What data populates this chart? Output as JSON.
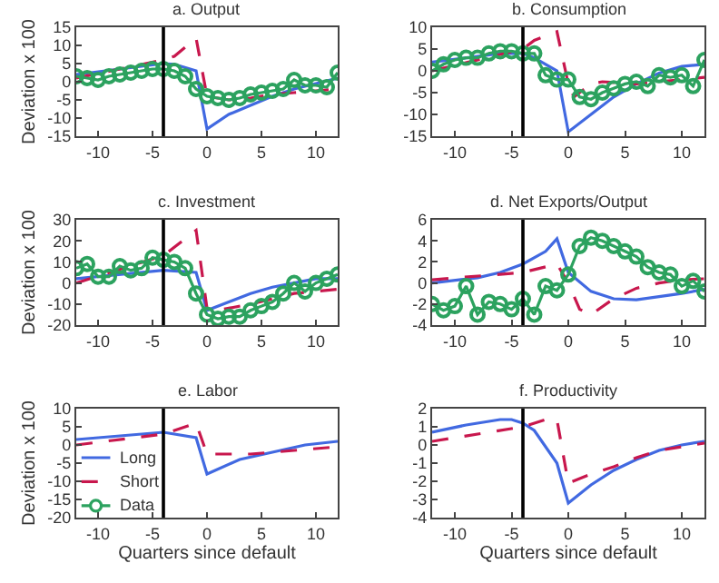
{
  "chart_data": [
    {
      "type": "line",
      "title": "a. Output",
      "ylabel": "Deviation x 100",
      "xlim": [
        -12,
        12
      ],
      "xticks": [
        -10,
        -5,
        0,
        5,
        10
      ],
      "ylim": [
        -15,
        15
      ],
      "yticks": [
        -15,
        -10,
        -5,
        0,
        5,
        10,
        15
      ],
      "ref_lines": [
        {
          "axis": "x",
          "value": -4,
          "color": "#000000"
        }
      ],
      "series": [
        {
          "color": "#4169e1",
          "line_style": "solid",
          "marker": "none",
          "x": [
            -12,
            -4,
            -3,
            -1,
            0,
            2,
            4,
            6,
            8,
            10,
            12
          ],
          "values": [
            2,
            5,
            4.8,
            3,
            -13,
            -9,
            -6.5,
            -4,
            -2,
            -0.5,
            1
          ]
        },
        {
          "color": "#c8174d",
          "line_style": "dashed",
          "marker": "none",
          "x": [
            -12,
            -4,
            -3,
            -1,
            0,
            2,
            4,
            6,
            8,
            10,
            12
          ],
          "values": [
            1,
            6,
            7,
            12,
            -4,
            -5,
            -4.5,
            -3.5,
            -3,
            -2.5,
            -2
          ]
        },
        {
          "color": "#2ca25f",
          "line_style": "solid",
          "marker": "circle",
          "x": [
            -12,
            -11,
            -10,
            -9,
            -8,
            -7,
            -6,
            -5,
            -4,
            -3,
            -2,
            -1,
            0,
            1,
            2,
            3,
            4,
            5,
            6,
            7,
            8,
            9,
            10,
            11,
            12
          ],
          "values": [
            1.5,
            1,
            0.5,
            1.5,
            2,
            2.5,
            3,
            3.5,
            3.5,
            3,
            1.5,
            -2,
            -4,
            -4.5,
            -5,
            -4.5,
            -3.5,
            -3,
            -2.5,
            -2,
            0.5,
            -1,
            -1,
            -1.5,
            2.5
          ]
        }
      ]
    },
    {
      "type": "line",
      "title": "b. Consumption",
      "xlim": [
        -12,
        12
      ],
      "xticks": [
        -10,
        -5,
        0,
        5,
        10
      ],
      "ylim": [
        -15,
        10
      ],
      "yticks": [
        -15,
        -10,
        -5,
        0,
        5,
        10
      ],
      "ref_lines": [
        {
          "axis": "x",
          "value": -4,
          "color": "#000000"
        }
      ],
      "series": [
        {
          "color": "#4169e1",
          "line_style": "solid",
          "marker": "none",
          "x": [
            -12,
            -6,
            -4,
            -3,
            -1,
            0,
            2,
            4,
            6,
            8,
            10,
            12
          ],
          "values": [
            2,
            4,
            4,
            3,
            0,
            -14,
            -10,
            -6,
            -3,
            -0.5,
            1,
            1.5
          ]
        },
        {
          "color": "#c8174d",
          "line_style": "dashed",
          "marker": "none",
          "x": [
            -12,
            -4,
            -3,
            -1,
            0,
            0.5,
            2,
            3,
            6,
            8,
            12
          ],
          "values": [
            0,
            5,
            7,
            9,
            -3,
            -6,
            -3,
            -2.5,
            -3,
            -2.5,
            -1.5
          ]
        },
        {
          "color": "#2ca25f",
          "line_style": "solid",
          "marker": "circle",
          "x": [
            -12,
            -11,
            -10,
            -9,
            -8,
            -7,
            -6,
            -5,
            -4,
            -3,
            -2,
            -1,
            0,
            1,
            2,
            3,
            4,
            5,
            6,
            7,
            8,
            9,
            10,
            11,
            12
          ],
          "values": [
            0,
            1.5,
            2.5,
            3,
            3,
            4,
            4.5,
            4.5,
            4,
            4,
            -1,
            -2,
            -2,
            -6,
            -6.5,
            -5,
            -4,
            -3,
            -2.5,
            -3.5,
            -1,
            -1.5,
            -1,
            -3.5,
            2.5
          ]
        }
      ]
    },
    {
      "type": "line",
      "title": "c. Investment",
      "ylabel": "Deviation x 100",
      "xlim": [
        -12,
        12
      ],
      "xticks": [
        -10,
        -5,
        0,
        5,
        10
      ],
      "ylim": [
        -20,
        30
      ],
      "yticks": [
        -20,
        -10,
        0,
        10,
        20,
        30
      ],
      "ref_lines": [
        {
          "axis": "x",
          "value": -4,
          "color": "#000000"
        }
      ],
      "series": [
        {
          "color": "#4169e1",
          "line_style": "solid",
          "marker": "none",
          "x": [
            -12,
            -4,
            -1,
            0,
            2,
            4,
            6,
            8,
            10,
            12
          ],
          "values": [
            2,
            6,
            5,
            -13,
            -9,
            -5,
            -2,
            0,
            2,
            2
          ]
        },
        {
          "color": "#c8174d",
          "line_style": "dashed",
          "marker": "none",
          "x": [
            -12,
            -4,
            -1,
            0,
            1,
            4,
            8,
            12
          ],
          "values": [
            0,
            13,
            25,
            -12,
            -13,
            -10,
            -5,
            -3
          ]
        },
        {
          "color": "#2ca25f",
          "line_style": "solid",
          "marker": "circle",
          "x": [
            -12,
            -11,
            -10,
            -9,
            -8,
            -7,
            -6,
            -5,
            -4,
            -3,
            -2,
            -1,
            0,
            1,
            2,
            3,
            4,
            5,
            6,
            7,
            8,
            9,
            10,
            11,
            12
          ],
          "values": [
            7,
            9,
            3,
            3,
            8,
            6,
            7,
            12,
            11,
            10,
            7,
            -5,
            -15,
            -17,
            -16,
            -16,
            -13,
            -11,
            -9,
            -5,
            0,
            -4,
            0,
            2,
            4
          ]
        }
      ]
    },
    {
      "type": "line",
      "title": "d. Net Exports/Output",
      "xlim": [
        -12,
        12
      ],
      "xticks": [
        -10,
        -5,
        0,
        5,
        10
      ],
      "ylim": [
        -4,
        6
      ],
      "yticks": [
        -4,
        -2,
        0,
        2,
        4,
        6
      ],
      "ref_lines": [
        {
          "axis": "x",
          "value": -4,
          "color": "#000000"
        }
      ],
      "series": [
        {
          "color": "#4169e1",
          "line_style": "solid",
          "marker": "none",
          "x": [
            -12,
            -8,
            -6,
            -4,
            -2,
            -1,
            0,
            2,
            4,
            6,
            8,
            10,
            12
          ],
          "values": [
            0,
            0.5,
            1,
            1.8,
            3,
            4.2,
            1,
            -0.8,
            -1.5,
            -1.6,
            -1.3,
            -1,
            -0.6
          ]
        },
        {
          "color": "#c8174d",
          "line_style": "dashed",
          "marker": "none",
          "x": [
            -12,
            -4,
            -1,
            0,
            1,
            2,
            4,
            6,
            8,
            10,
            12
          ],
          "values": [
            0.3,
            1,
            1.8,
            0,
            -2.5,
            -3,
            -1.5,
            -0.5,
            0,
            0.3,
            0.4
          ]
        },
        {
          "color": "#2ca25f",
          "line_style": "solid",
          "marker": "circle",
          "x": [
            -12,
            -11,
            -10,
            -9,
            -8,
            -7,
            -6,
            -5,
            -4,
            -3,
            -2,
            -1,
            0,
            1,
            2,
            3,
            4,
            5,
            6,
            7,
            8,
            9,
            10,
            11,
            12
          ],
          "values": [
            -2,
            -2.6,
            -2.2,
            -0.3,
            -3,
            -1.8,
            -2,
            -2.5,
            -1.5,
            -3,
            -0.3,
            -0.7,
            0.8,
            3.5,
            4.3,
            4,
            3.5,
            3,
            2.5,
            1.5,
            1,
            0.8,
            -0.3,
            0.2,
            -0.8
          ]
        }
      ]
    },
    {
      "type": "line",
      "title": "e. Labor",
      "ylabel": "Deviation x 100",
      "xlabel": "Quarters since default",
      "xlim": [
        -12,
        12
      ],
      "xticks": [
        -10,
        -5,
        0,
        5,
        10
      ],
      "ylim": [
        -20,
        10
      ],
      "yticks": [
        -20,
        -15,
        -10,
        -5,
        0,
        5,
        10
      ],
      "legend": "bottom left",
      "ref_lines": [
        {
          "axis": "x",
          "value": -4,
          "color": "#000000"
        }
      ],
      "series": [
        {
          "name": "Long",
          "color": "#4169e1",
          "line_style": "solid",
          "marker": "none",
          "x": [
            -12,
            -4,
            -1,
            0,
            3,
            6,
            9,
            12
          ],
          "values": [
            1.5,
            3.5,
            2,
            -8,
            -4,
            -2,
            0,
            1
          ]
        },
        {
          "name": "Short",
          "color": "#c8174d",
          "line_style": "dashed",
          "marker": "none",
          "x": [
            -12,
            -4,
            -1,
            0,
            4,
            8,
            12
          ],
          "values": [
            0,
            3,
            6,
            -2.5,
            -2.5,
            -1.5,
            -0.5
          ]
        },
        {
          "name": "Data",
          "color": "#2ca25f",
          "line_style": "solid",
          "marker": "circle"
        }
      ]
    },
    {
      "type": "line",
      "title": "f. Productivity",
      "xlabel": "Quarters since default",
      "xlim": [
        -12,
        12
      ],
      "xticks": [
        -10,
        -5,
        0,
        5,
        10
      ],
      "ylim": [
        -4,
        2
      ],
      "yticks": [
        -4,
        -3,
        -2,
        -1,
        0,
        1,
        2
      ],
      "ref_lines": [
        {
          "axis": "x",
          "value": -4,
          "color": "#000000"
        }
      ],
      "series": [
        {
          "color": "#4169e1",
          "line_style": "solid",
          "marker": "none",
          "x": [
            -12,
            -9,
            -6,
            -5,
            -4,
            -3,
            -1,
            0,
            2,
            4,
            6,
            8,
            10,
            12
          ],
          "values": [
            0.7,
            1.1,
            1.4,
            1.4,
            1.2,
            0.8,
            -1,
            -3.2,
            -2.2,
            -1.4,
            -0.8,
            -0.3,
            0,
            0.2
          ]
        },
        {
          "color": "#c8174d",
          "line_style": "dashed",
          "marker": "none",
          "x": [
            -12,
            -4,
            -2,
            -1,
            0,
            2,
            4,
            6,
            8,
            10,
            12
          ],
          "values": [
            0.2,
            1,
            1.4,
            1.4,
            -2.1,
            -1.6,
            -1.2,
            -0.7,
            -0.3,
            -0.1,
            0.1
          ]
        }
      ]
    }
  ]
}
